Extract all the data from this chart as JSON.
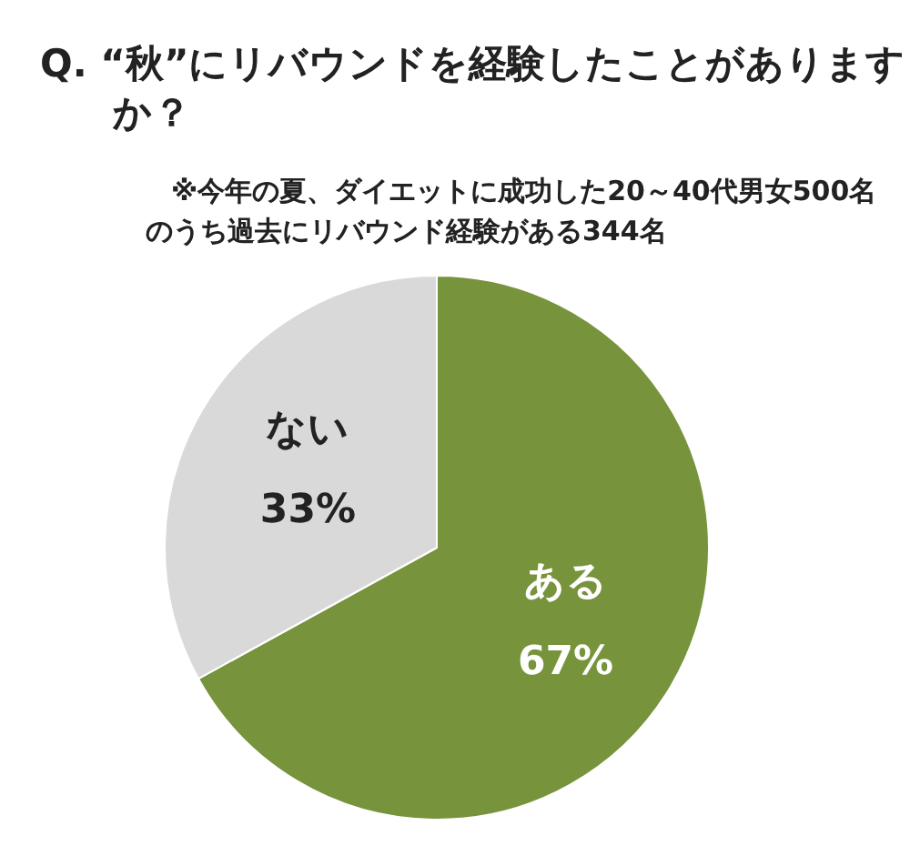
{
  "chart_data": {
    "type": "pie",
    "title": "Q. “秋”にリバウンドを経験したことがありますか？",
    "subtitle": "※今年の夏、ダイエットに成功した20～40代男女500名のうち過去にリバウンド経験がある344名",
    "categories": [
      "ある",
      "ない"
    ],
    "values": [
      67,
      33
    ],
    "value_labels": [
      "67%",
      "33%"
    ],
    "colors": [
      "#77933c",
      "#d9d9d9"
    ],
    "legend": false
  }
}
